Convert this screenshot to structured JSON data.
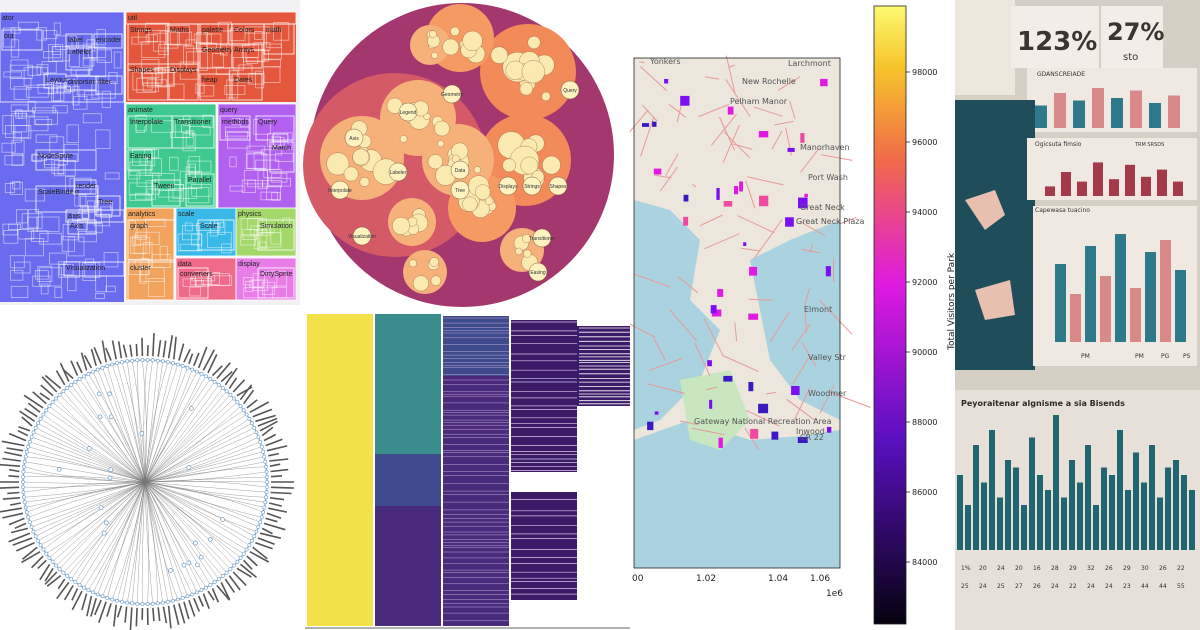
{
  "treemap": {
    "cells": [
      {
        "label": "ator",
        "color": "#6a6cf0"
      },
      {
        "label": "out",
        "color": "#6a6cf0"
      },
      {
        "label": "label",
        "color": "#6a6cf0"
      },
      {
        "label": "Labeler",
        "color": "#6a6cf0"
      },
      {
        "label": "encoder",
        "color": "#6a6cf0"
      },
      {
        "label": "distortion",
        "color": "#6a6cf0"
      },
      {
        "label": "filter",
        "color": "#6a6cf0"
      },
      {
        "label": "Layout",
        "color": "#6a6cf0"
      },
      {
        "label": "util",
        "color": "#e4573c"
      },
      {
        "label": "Strings",
        "color": "#e4573c"
      },
      {
        "label": "Maths",
        "color": "#e4573c"
      },
      {
        "label": "palette",
        "color": "#e4573c"
      },
      {
        "label": "Colors",
        "color": "#e4573c"
      },
      {
        "label": "math",
        "color": "#e4573c"
      },
      {
        "label": "Shapes",
        "color": "#e4573c"
      },
      {
        "label": "Displays",
        "color": "#e4573c"
      },
      {
        "label": "Geometry",
        "color": "#e4573c"
      },
      {
        "label": "Arrays",
        "color": "#e4573c"
      },
      {
        "label": "heap",
        "color": "#e4573c"
      },
      {
        "label": "Dates",
        "color": "#e4573c"
      },
      {
        "label": "animate",
        "color": "#3fc98f"
      },
      {
        "label": "Interpolate",
        "color": "#3fc98f"
      },
      {
        "label": "Transitioner",
        "color": "#3fc98f"
      },
      {
        "label": "Easing",
        "color": "#3fc98f"
      },
      {
        "label": "Tween",
        "color": "#3fc98f"
      },
      {
        "label": "Parallel",
        "color": "#3fc98f"
      },
      {
        "label": "query",
        "color": "#b160f0"
      },
      {
        "label": "methods",
        "color": "#b160f0"
      },
      {
        "label": "Query",
        "color": "#b160f0"
      },
      {
        "label": "Match",
        "color": "#b160f0"
      },
      {
        "label": "NodeSprite",
        "color": "#6a6cf0"
      },
      {
        "label": "ScaleBinding",
        "color": "#6a6cf0"
      },
      {
        "label": "render",
        "color": "#6a6cf0"
      },
      {
        "label": "Tree",
        "color": "#6a6cf0"
      },
      {
        "label": "axis",
        "color": "#6a6cf0"
      },
      {
        "label": "Axis",
        "color": "#6a6cf0"
      },
      {
        "label": "Visualization",
        "color": "#6a6cf0"
      },
      {
        "label": "analytics",
        "color": "#f2a35e"
      },
      {
        "label": "graph",
        "color": "#f2a35e"
      },
      {
        "label": "cluster",
        "color": "#f2a35e"
      },
      {
        "label": "scale",
        "color": "#39b9e8"
      },
      {
        "label": "Scale",
        "color": "#39b9e8"
      },
      {
        "label": "physics",
        "color": "#a5d86a"
      },
      {
        "label": "Simulation",
        "color": "#a5d86a"
      },
      {
        "label": "data",
        "color": "#f06a8a"
      },
      {
        "label": "converters",
        "color": "#f06a8a"
      },
      {
        "label": "display",
        "color": "#e87de8"
      },
      {
        "label": "DirtySprite",
        "color": "#e87de8"
      }
    ]
  },
  "circle_pack": {
    "labels": [
      "Axis",
      "Legend",
      "Labeler",
      "Visualization",
      "Query",
      "Displays",
      "Strings",
      "Shapes",
      "Transitioner",
      "Easing",
      "Tree",
      "Data",
      "Geometry",
      "Interpolate"
    ]
  },
  "heatmap_colors": [
    "#f3e14a",
    "#3b8c8c",
    "#3f4a8c",
    "#4a2a7a",
    "#3b1a68"
  ],
  "map": {
    "places": [
      "Yonkers",
      "New Rochelle",
      "Pelham Manor",
      "Larchmont",
      "Manorhaven",
      "Port Wash",
      "Great Neck",
      "Great Neck Plaza",
      "Elmont",
      "Valley Str",
      "Woodmer",
      "Inwood",
      "Gateway National Recreation Area",
      "CR 22"
    ],
    "x_ticks": [
      "00",
      "1.02",
      "1.04",
      "1.06"
    ],
    "x_exponent": "1e6",
    "colorbar_label": "Total Visitors per Park",
    "colorbar_ticks": [
      "98000",
      "96000",
      "94000",
      "92000",
      "90000",
      "88000",
      "86000",
      "84000"
    ]
  },
  "infographic": {
    "stat1": "123%",
    "stat2": "27%",
    "stat2_sub": "sto",
    "panel1_title": "GDANSCREIADE",
    "panel2_title": "Ogicsuta fimsio",
    "panel2_legend": "TRM SRSDS",
    "panel3_title": "Capewasa tuacino",
    "bottom_title": "Peyoraitenar algnisme a sia Bisends",
    "bottom_numbers": [
      "1%",
      "20",
      "24",
      "20",
      "16",
      "28",
      "29",
      "32",
      "26",
      "29",
      "30",
      "26",
      "22",
      "25",
      "24",
      "25",
      "27",
      "26",
      "24",
      "22",
      "24",
      "24",
      "23",
      "44",
      "44",
      "55"
    ],
    "legend": [
      "PM",
      "PM",
      "PG",
      "PS"
    ],
    "bars_a": [
      0.45,
      0.7,
      0.55,
      0.8,
      0.6,
      0.75,
      0.5,
      0.65
    ],
    "bars_b": [
      0.2,
      0.5,
      0.3,
      0.7,
      0.35,
      0.65,
      0.4,
      0.55,
      0.3
    ],
    "bars_c": [
      0.65,
      0.4,
      0.8,
      0.55,
      0.9,
      0.45,
      0.75,
      0.85,
      0.6
    ],
    "bars_d": [
      0.5,
      0.3,
      0.7,
      0.45,
      0.8,
      0.35,
      0.6,
      0.55,
      0.3,
      0.75,
      0.5,
      0.4,
      0.9,
      0.35,
      0.6,
      0.45,
      0.7,
      0.3,
      0.55,
      0.5,
      0.8,
      0.4,
      0.65,
      0.45,
      0.7,
      0.35,
      0.55,
      0.6,
      0.5,
      0.4
    ]
  }
}
